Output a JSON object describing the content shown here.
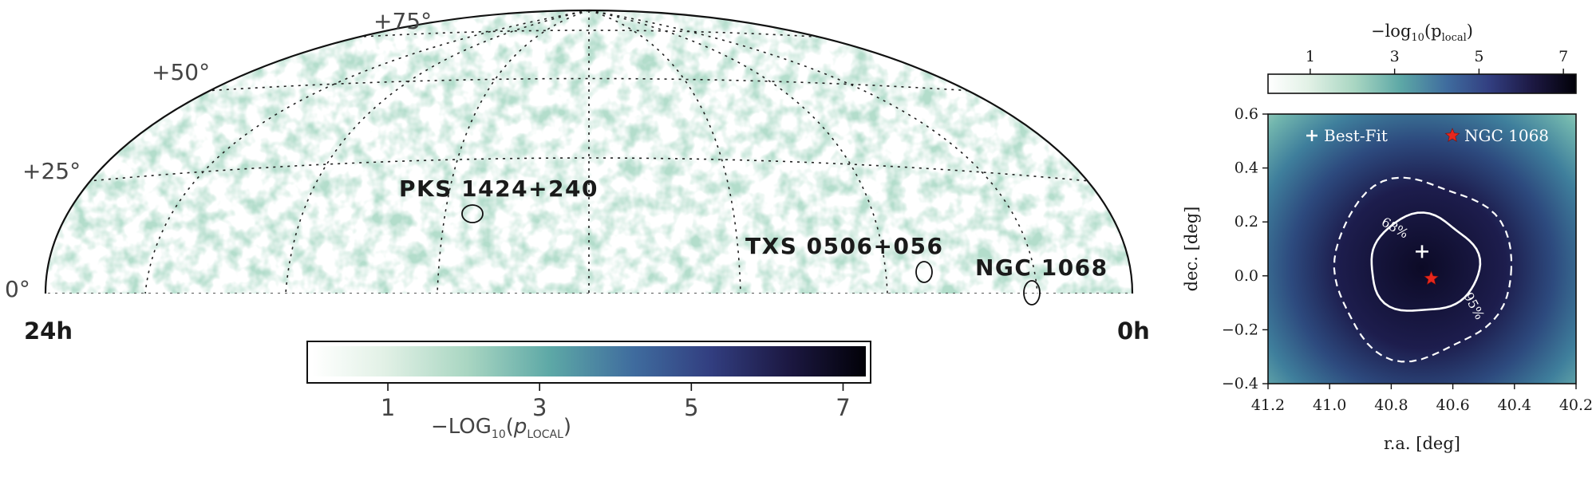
{
  "chart_data": [
    {
      "type": "heatmap",
      "projection": "hammer (northern sky)",
      "dec_labels": [
        "0°",
        "+25°",
        "+50°",
        "+75°"
      ],
      "ra_labels": {
        "left": "24h",
        "right": "0h"
      },
      "sources": [
        {
          "name": "PKS 1424+240"
        },
        {
          "name": "TXS 0506+056"
        },
        {
          "name": "NGC 1068"
        }
      ],
      "colorbar": {
        "label_prefix": "−LOG",
        "label_sub": "10",
        "label_mid": "(",
        "label_p": "p",
        "label_sub2": "LOCAL",
        "label_suffix": ")",
        "ticks": [
          "1",
          "3",
          "5",
          "7"
        ],
        "range": [
          0,
          7.3
        ]
      },
      "grid": true
    },
    {
      "type": "heatmap",
      "xlabel": "r.a. [deg]",
      "ylabel": "dec. [deg]",
      "xlim": [
        41.2,
        40.2
      ],
      "ylim": [
        -0.4,
        0.6
      ],
      "xticks": [
        "41.2",
        "41.0",
        "40.8",
        "40.6",
        "40.4",
        "40.2"
      ],
      "yticks": [
        "−0.4",
        "−0.2",
        "0.0",
        "0.2",
        "0.4",
        "0.6"
      ],
      "best_fit": {
        "ra": 40.7,
        "dec": 0.09,
        "label": "Best-Fit"
      },
      "ngc1068": {
        "ra": 40.67,
        "dec": -0.01,
        "label": "NGC 1068"
      },
      "contours": [
        {
          "label": "68%"
        },
        {
          "label": "95%"
        }
      ],
      "colorbar": {
        "label": "−log",
        "label_sub": "10",
        "label_end": "(p",
        "label_sub2": "local",
        "label_close": ")",
        "ticks": [
          "1",
          "3",
          "5",
          "7"
        ],
        "range": [
          0,
          7.3
        ]
      }
    }
  ]
}
